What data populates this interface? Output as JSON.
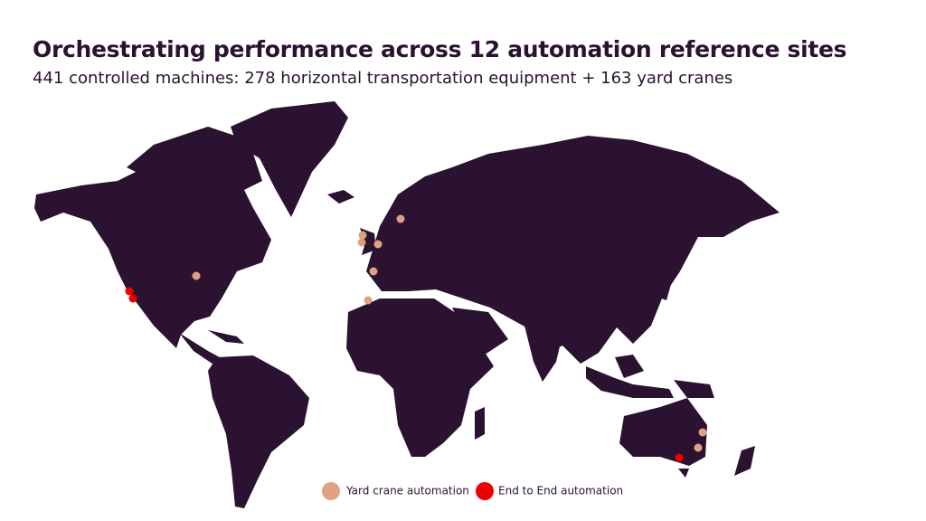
{
  "header": {
    "title": "Orchestrating performance across 12 automation reference sites",
    "subtitle": "441 controlled machines: 278 horizontal transportation equipment + 163 yard cranes"
  },
  "legend": [
    {
      "label": "Yard crane automation"
    },
    {
      "label": "End to End automation"
    }
  ]
}
